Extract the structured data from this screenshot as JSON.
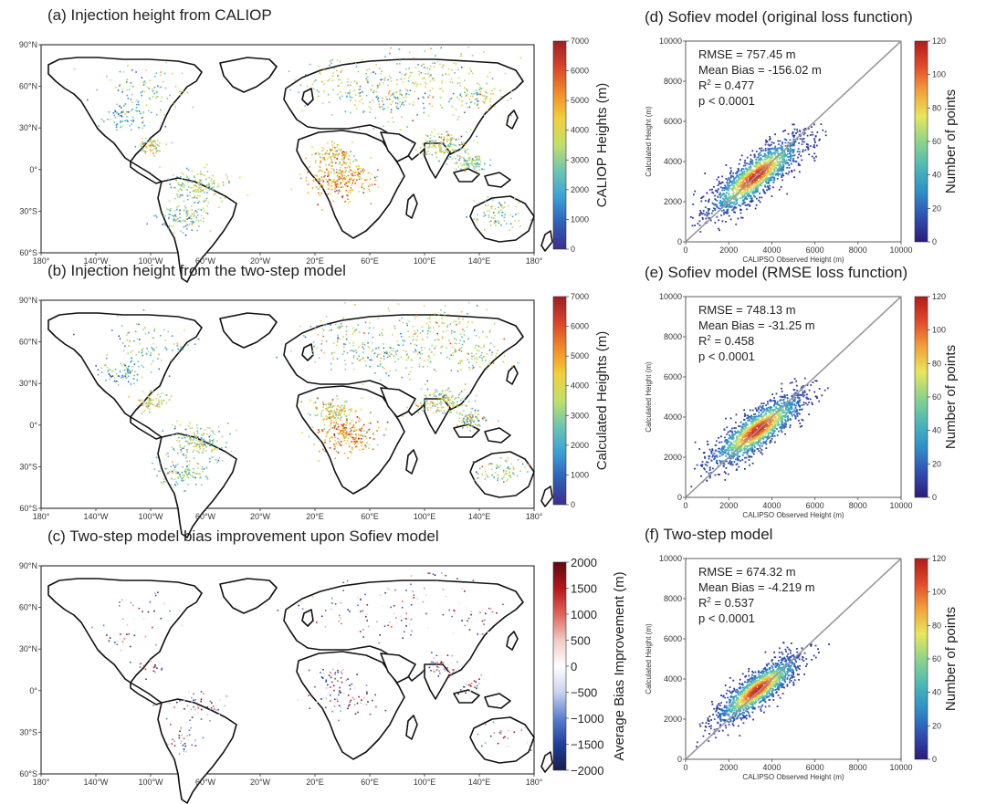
{
  "colormaps": {
    "heights": [
      "#3b2f8f",
      "#2e5fb8",
      "#3aa0d8",
      "#6cc6b0",
      "#bfe06a",
      "#f2d03b",
      "#f28c28",
      "#d9442a",
      "#9e1f23"
    ],
    "bias": [
      "#1b1f4b",
      "#1e3f9c",
      "#5a7fd0",
      "#c9d4ef",
      "#ffffff",
      "#f2c9c4",
      "#e0655a",
      "#b8161c",
      "#5c0a10"
    ],
    "density": [
      "#2c1a7a",
      "#2f4fb5",
      "#2f8fc9",
      "#4bb9b7",
      "#8fd48a",
      "#e8e65a",
      "#f3a13a",
      "#e24a2a",
      "#b31b1b"
    ]
  },
  "map_axes": {
    "lon_ticks": [
      "180°",
      "140°W",
      "100°W",
      "60°W",
      "20°W",
      "20°E",
      "60°E",
      "100°E",
      "140°E",
      "180°"
    ],
    "lat_ticks": [
      "90°N",
      "60°N",
      "30°N",
      "0°",
      "30°S",
      "60°S"
    ]
  },
  "chart_data": [
    {
      "type": "heatmap",
      "panel": "a",
      "title": "(a) Injection height from CALIOP",
      "colorbar_label": "CALIOP Heights (m)",
      "colorbar_ticks": [
        "0",
        "1000",
        "2000",
        "3000",
        "4000",
        "5000",
        "6000",
        "7000"
      ],
      "colorbar_range": [
        0,
        7000
      ],
      "cmap": "heights"
    },
    {
      "type": "heatmap",
      "panel": "b",
      "title": "(b) Injection height from the two-step model",
      "colorbar_label": "Calculated Heights (m)",
      "colorbar_ticks": [
        "0",
        "1000",
        "2000",
        "3000",
        "4000",
        "5000",
        "6000",
        "7000"
      ],
      "colorbar_range": [
        0,
        7000
      ],
      "cmap": "heights"
    },
    {
      "type": "heatmap",
      "panel": "c",
      "title": "(c) Two-step model bias improvement upon Sofiev model",
      "colorbar_label": "Average Bias Improvement (m)",
      "colorbar_ticks": [
        "−2000",
        "−1500",
        "−1000",
        "−500",
        "0",
        "500",
        "1000",
        "1500",
        "2000"
      ],
      "colorbar_range": [
        -2000,
        2000
      ],
      "cmap": "bias"
    },
    {
      "type": "scatter",
      "panel": "d",
      "title": "(d) Sofiev model (original loss function)",
      "xlabel": "CALIPSO Observed Height (m)",
      "ylabel": "Calculated Height (m)",
      "xlim": [
        0,
        10000
      ],
      "ylim": [
        0,
        10000
      ],
      "ticks": [
        "0",
        "2000",
        "4000",
        "6000",
        "8000",
        "10000"
      ],
      "colorbar_label": "Number of points",
      "colorbar_ticks": [
        "0",
        "20",
        "40",
        "60",
        "80",
        "100",
        "120"
      ],
      "colorbar_range": [
        0,
        120
      ],
      "stats": {
        "rmse": "RMSE  =  757.45 m",
        "bias": "Mean Bias = -156.02 m",
        "r2_label": "R",
        "r2_sup": "2",
        "r2_value": " = 0.477",
        "p": "p < 0.0001"
      },
      "density_center": [
        3200,
        3300
      ],
      "density_spread": [
        1100,
        900
      ],
      "slope": 0.75
    },
    {
      "type": "scatter",
      "panel": "e",
      "title": "(e) Sofiev model (RMSE loss function)",
      "xlabel": "CALIPSO Observed Height (m)",
      "ylabel": "Calculated Height (m)",
      "xlim": [
        0,
        10000
      ],
      "ylim": [
        0,
        10000
      ],
      "ticks": [
        "0",
        "2000",
        "4000",
        "6000",
        "8000",
        "10000"
      ],
      "colorbar_label": "Number of points",
      "colorbar_ticks": [
        "0",
        "20",
        "40",
        "60",
        "80",
        "100",
        "120"
      ],
      "colorbar_range": [
        0,
        120
      ],
      "stats": {
        "rmse": "RMSE  =  748.13 m",
        "bias": "Mean Bias = -31.25 m",
        "r2_label": "R",
        "r2_sup": "2",
        "r2_value": " = 0.458",
        "p": "p < 0.0001"
      },
      "density_center": [
        3300,
        3400
      ],
      "density_spread": [
        1100,
        850
      ],
      "slope": 0.7
    },
    {
      "type": "scatter",
      "panel": "f",
      "title": "(f) Two-step model",
      "xlabel": "CALIPSO Observed Height (m)",
      "ylabel": "Calculated Height (m)",
      "xlim": [
        0,
        10000
      ],
      "ylim": [
        0,
        10000
      ],
      "ticks": [
        "0",
        "2000",
        "4000",
        "6000",
        "8000",
        "10000"
      ],
      "colorbar_label": "Number of points",
      "colorbar_ticks": [
        "0",
        "20",
        "40",
        "60",
        "80",
        "100",
        "120"
      ],
      "colorbar_range": [
        0,
        120
      ],
      "stats": {
        "rmse": "RMSE  =  674.32 m",
        "bias": "Mean Bias = -4.219 m",
        "r2_label": "R",
        "r2_sup": "2",
        "r2_value": " = 0.537",
        "p": "p < 0.0001"
      },
      "density_center": [
        3300,
        3500
      ],
      "density_spread": [
        1000,
        750
      ],
      "slope": 0.72
    }
  ]
}
